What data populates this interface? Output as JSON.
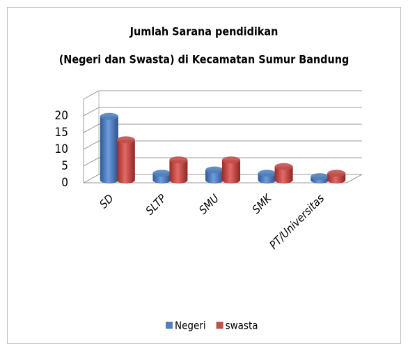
{
  "chart_data": {
    "type": "bar3d",
    "title": [
      "Jumlah Sarana pendidikan",
      "(Negeri dan Swasta) di Kecamatan Sumur Bandung"
    ],
    "categories": [
      "SD",
      "SLTP",
      "SMU",
      "SMK",
      "PT/Universitas"
    ],
    "series": [
      {
        "name": "Negeri",
        "color": "#4f81bd",
        "values": [
          19,
          2,
          3,
          2,
          1
        ]
      },
      {
        "name": "swasta",
        "color": "#c0504d",
        "values": [
          12,
          6,
          6,
          4,
          2
        ]
      }
    ],
    "ylim": [
      0,
      25
    ],
    "yticks": [
      0,
      5,
      10,
      15,
      20
    ],
    "grid": true,
    "legend": "bottom"
  }
}
